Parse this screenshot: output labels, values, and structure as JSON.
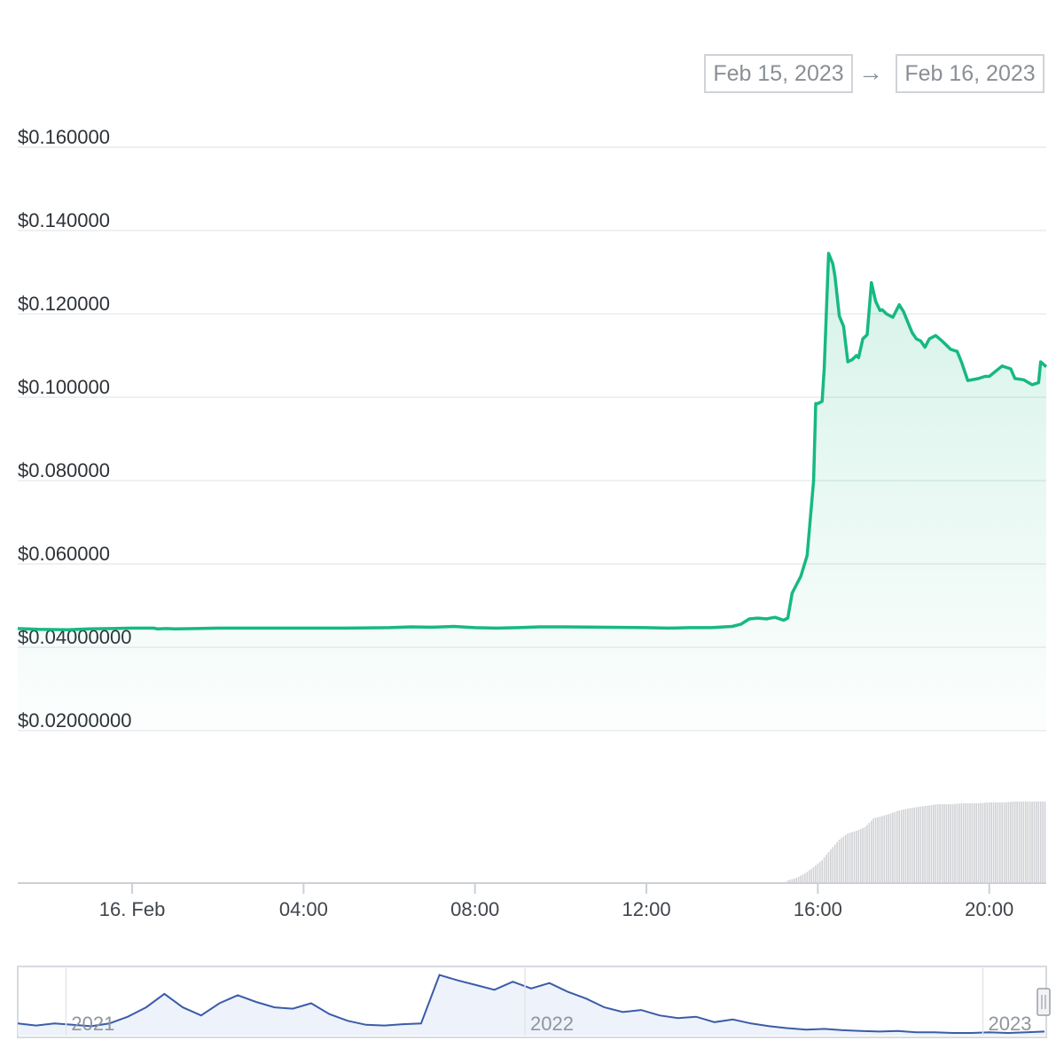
{
  "range_selector": {
    "start_date": "Feb 15, 2023",
    "arrow": "→",
    "end_date": "Feb 16, 2023"
  },
  "colors": {
    "price_line": "#16b981",
    "price_fill": "#16b981",
    "volume_bar": "#cfd1d4",
    "navigator_line": "#3a5ca8",
    "navigator_fill": "#eef2fa",
    "grid": "#e9ebee"
  },
  "chart_data": {
    "type": "line",
    "title": "",
    "xlabel": "",
    "ylabel": "",
    "grid": true,
    "y_ticks": [
      "$0.02000000",
      "$0.04000000",
      "$0.060000",
      "$0.080000",
      "$0.100000",
      "$0.120000",
      "$0.140000",
      "$0.160000"
    ],
    "y_tick_values": [
      0.02,
      0.04,
      0.06,
      0.08,
      0.1,
      0.12,
      0.14,
      0.16
    ],
    "ylim": [
      0.02,
      0.16
    ],
    "x_ticks": [
      "16. Feb",
      "04:00",
      "08:00",
      "12:00",
      "16:00",
      "20:00"
    ],
    "x_tick_hours": [
      0,
      4,
      8,
      12,
      16,
      20
    ],
    "xlim_hours": [
      -2.67,
      21.33
    ],
    "x_unit": "hours after 16. Feb 00:00",
    "series": [
      {
        "x": [
          -2.67,
          -2.2,
          -1.5,
          -1.0,
          -0.5,
          0.0,
          0.5,
          0.6,
          0.8,
          1.0,
          1.5,
          2.0,
          3.0,
          4.0,
          5.0,
          6.0,
          6.5,
          7.0,
          7.5,
          8.0,
          8.5,
          9.0,
          9.5,
          10.0,
          11.0,
          12.0,
          12.5,
          13.0,
          13.5,
          14.0,
          14.2,
          14.4,
          14.6,
          14.8,
          15.0,
          15.2,
          15.3,
          15.4,
          15.5,
          15.6,
          15.75,
          15.9,
          15.95,
          16.0,
          16.1,
          16.15,
          16.25,
          16.35,
          16.4,
          16.5,
          16.6,
          16.7,
          16.8,
          16.9,
          16.95,
          17.05,
          17.15,
          17.25,
          17.35,
          17.45,
          17.5,
          17.6,
          17.75,
          17.9,
          18.0,
          18.1,
          18.2,
          18.3,
          18.4,
          18.5,
          18.6,
          18.75,
          18.9,
          19.0,
          19.1,
          19.25,
          19.35,
          19.5,
          19.75,
          19.9,
          20.0,
          20.3,
          20.5,
          20.6,
          20.8,
          21.0,
          21.15,
          21.2,
          21.33
        ],
        "values": [
          0.0445,
          0.0443,
          0.0442,
          0.0444,
          0.0445,
          0.0446,
          0.0446,
          0.0444,
          0.0445,
          0.0444,
          0.0445,
          0.0446,
          0.0446,
          0.0446,
          0.0446,
          0.0447,
          0.0449,
          0.0448,
          0.045,
          0.0447,
          0.0446,
          0.0447,
          0.0449,
          0.0449,
          0.0448,
          0.0447,
          0.0446,
          0.0447,
          0.0447,
          0.045,
          0.0455,
          0.0468,
          0.047,
          0.0468,
          0.0472,
          0.0465,
          0.047,
          0.053,
          0.055,
          0.057,
          0.062,
          0.08,
          0.0985,
          0.0985,
          0.099,
          0.107,
          0.1345,
          0.132,
          0.129,
          0.1195,
          0.117,
          0.1085,
          0.109,
          0.11,
          0.1095,
          0.114,
          0.115,
          0.1275,
          0.123,
          0.1208,
          0.121,
          0.12,
          0.1192,
          0.1222,
          0.1205,
          0.118,
          0.1155,
          0.114,
          0.1135,
          0.112,
          0.114,
          0.1148,
          0.1135,
          0.1125,
          0.1115,
          0.111,
          0.1085,
          0.104,
          0.1045,
          0.105,
          0.105,
          0.1075,
          0.1068,
          0.1045,
          0.1042,
          0.103,
          0.1035,
          0.1085,
          0.1073
        ]
      }
    ],
    "volume": {
      "x": [
        15.3,
        15.5,
        15.7,
        15.9,
        16.1,
        16.3,
        16.5,
        16.7,
        16.9,
        17.1,
        17.3,
        17.6,
        17.9,
        18.2,
        18.5,
        18.8,
        19.1,
        19.4,
        19.7,
        20.0,
        20.3,
        20.6,
        20.9,
        21.2,
        21.33
      ],
      "relative_values": [
        0.02,
        0.05,
        0.1,
        0.17,
        0.25,
        0.37,
        0.48,
        0.55,
        0.58,
        0.62,
        0.72,
        0.76,
        0.81,
        0.84,
        0.86,
        0.88,
        0.88,
        0.89,
        0.89,
        0.9,
        0.9,
        0.91,
        0.91,
        0.91,
        0.91
      ]
    },
    "navigator": {
      "labels": [
        "2021",
        "2022",
        "2023"
      ],
      "relative_values": [
        0.18,
        0.15,
        0.18,
        0.16,
        0.14,
        0.18,
        0.28,
        0.42,
        0.62,
        0.42,
        0.3,
        0.48,
        0.6,
        0.5,
        0.42,
        0.4,
        0.48,
        0.32,
        0.22,
        0.16,
        0.15,
        0.17,
        0.18,
        0.9,
        0.82,
        0.75,
        0.68,
        0.8,
        0.7,
        0.78,
        0.65,
        0.55,
        0.42,
        0.35,
        0.38,
        0.3,
        0.26,
        0.28,
        0.2,
        0.24,
        0.18,
        0.14,
        0.11,
        0.09,
        0.1,
        0.08,
        0.07,
        0.06,
        0.07,
        0.05,
        0.05,
        0.04,
        0.04,
        0.05,
        0.04,
        0.05,
        0.06
      ]
    }
  }
}
